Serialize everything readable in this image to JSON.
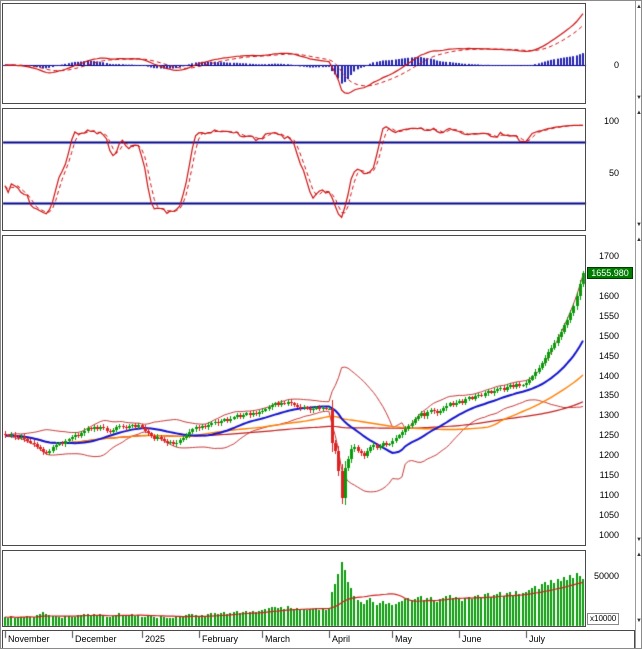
{
  "axis": {
    "volume_multiplier_label": "x10000"
  },
  "icons": {
    "scroll_up": "▲",
    "scroll_down": "▼"
  },
  "colors": {
    "candle_up": "#0a9a0a",
    "candle_down": "#dd2222",
    "histogram": "#2020b0",
    "indicator_line": "#cc1111",
    "indicator_signal": "#cc1111",
    "ref_line": "#00008b",
    "zero_line": "#00008b",
    "bollinger": "#c43a3a",
    "ma_blue": "#1313cc",
    "ma_orange": "#ff7f00",
    "ma_red": "#c02020",
    "volume_bar": "#0a9a0a",
    "volume_ma": "#cc2222",
    "badge_bg": "#007d00",
    "badge_text": "#ffffff"
  },
  "chart_data": {
    "type": "candlestick-multi-panel",
    "title": "",
    "last_price_label": "1655.980",
    "panels": [
      "macd-oscillator",
      "stochastic-oscillator",
      "price-candlestick",
      "volume"
    ],
    "x_axis": {
      "months": [
        {
          "label": "November",
          "i": 0
        },
        {
          "label": "December",
          "i": 21
        },
        {
          "label": "2025",
          "i": 43
        },
        {
          "label": "February",
          "i": 61
        },
        {
          "label": "March",
          "i": 81
        },
        {
          "label": "April",
          "i": 102
        },
        {
          "label": "May",
          "i": 122
        },
        {
          "label": "June",
          "i": 143
        },
        {
          "label": "July",
          "i": 164
        }
      ]
    },
    "y_axes": {
      "indicator1": {
        "ticks": [
          0
        ]
      },
      "indicator2": {
        "ticks": [
          100,
          50
        ],
        "range": [
          -6,
          112
        ],
        "ref_lines": [
          80,
          20
        ]
      },
      "price": {
        "ticks": [
          1700,
          1650,
          1600,
          1550,
          1500,
          1450,
          1400,
          1350,
          1300,
          1250,
          1200,
          1150,
          1100,
          1050,
          1000
        ],
        "range": [
          975,
          1750
        ]
      },
      "volume": {
        "ticks": [
          50000
        ],
        "range": [
          0,
          75000
        ]
      }
    },
    "indicators": {
      "macd": {
        "fast": 12,
        "slow": 26,
        "signal": 9
      },
      "stochastic": {
        "k": 14,
        "slowing": 3,
        "d": 3
      },
      "bollinger": {
        "period": 20,
        "mult": 2
      },
      "ma_blue": 20,
      "ma_orange": 50,
      "ma_red": 100,
      "volume_ma": 20
    },
    "closes": [
      1250,
      1248,
      1252,
      1246,
      1243,
      1247,
      1240,
      1236,
      1232,
      1228,
      1222,
      1215,
      1208,
      1205,
      1212,
      1220,
      1226,
      1230,
      1228,
      1235,
      1240,
      1246,
      1251,
      1248,
      1255,
      1262,
      1268,
      1265,
      1270,
      1266,
      1272,
      1268,
      1262,
      1258,
      1264,
      1270,
      1274,
      1271,
      1268,
      1273,
      1276,
      1272,
      1275,
      1269,
      1262,
      1255,
      1248,
      1242,
      1246,
      1240,
      1235,
      1230,
      1234,
      1228,
      1232,
      1238,
      1244,
      1250,
      1258,
      1265,
      1270,
      1268,
      1273,
      1270,
      1276,
      1280,
      1284,
      1280,
      1286,
      1290,
      1287,
      1292,
      1296,
      1300,
      1296,
      1302,
      1305,
      1301,
      1306,
      1303,
      1308,
      1312,
      1316,
      1320,
      1325,
      1330,
      1327,
      1332,
      1329,
      1334,
      1330,
      1326,
      1322,
      1318,
      1321,
      1317,
      1313,
      1317,
      1320,
      1316,
      1318,
      1317,
      1317,
      1230,
      1210,
      1160,
      1094,
      1168,
      1190,
      1215,
      1222,
      1210,
      1205,
      1198,
      1212,
      1220,
      1226,
      1218,
      1224,
      1230,
      1226,
      1228,
      1236,
      1244,
      1250,
      1258,
      1266,
      1274,
      1282,
      1290,
      1298,
      1305,
      1298,
      1308,
      1313,
      1310,
      1305,
      1312,
      1318,
      1324,
      1330,
      1327,
      1332,
      1336,
      1332,
      1340,
      1345,
      1342,
      1348,
      1352,
      1349,
      1355,
      1360,
      1356,
      1362,
      1366,
      1370,
      1365,
      1372,
      1376,
      1372,
      1378,
      1374,
      1376,
      1382,
      1390,
      1398,
      1410,
      1420,
      1432,
      1445,
      1458,
      1470,
      1482,
      1496,
      1510,
      1526,
      1540,
      1556,
      1575,
      1600,
      1630,
      1655.98
    ],
    "volumes": [
      9000,
      8500,
      10000,
      7800,
      8200,
      9500,
      8800,
      10500,
      9200,
      8600,
      11000,
      12500,
      13800,
      12000,
      10800,
      9600,
      10200,
      9000,
      8400,
      9800,
      10400,
      9200,
      8800,
      10600,
      11200,
      12400,
      11800,
      10400,
      11600,
      9800,
      12200,
      10800,
      9400,
      8800,
      10200,
      11400,
      12600,
      11000,
      9600,
      10800,
      11600,
      10200,
      10800,
      9400,
      8600,
      9800,
      10400,
      9000,
      8200,
      9600,
      8800,
      7600,
      8400,
      7800,
      8600,
      9200,
      10000,
      10800,
      11600,
      12400,
      11000,
      10200,
      11000,
      10400,
      11800,
      12600,
      13400,
      11800,
      12800,
      13600,
      12000,
      13000,
      14200,
      15000,
      13200,
      14400,
      15200,
      13600,
      14800,
      13800,
      15400,
      16200,
      17000,
      17800,
      18600,
      19400,
      17600,
      18800,
      17200,
      19600,
      18000,
      16800,
      17600,
      16400,
      17200,
      15800,
      16600,
      17400,
      18200,
      16000,
      17000,
      16400,
      18000,
      34000,
      42000,
      52000,
      64000,
      56000,
      44000,
      38000,
      30000,
      26000,
      24000,
      22000,
      26000,
      28000,
      24000,
      21000,
      23000,
      25000,
      22000,
      23000,
      21000,
      22500,
      24000,
      25500,
      27000,
      28500,
      26000,
      27500,
      29000,
      30500,
      26500,
      28000,
      29500,
      26000,
      24500,
      27000,
      28500,
      30000,
      31500,
      28000,
      29500,
      27000,
      25500,
      28000,
      29500,
      27500,
      30000,
      31500,
      28500,
      32000,
      33500,
      29500,
      31000,
      32500,
      34000,
      30000,
      33000,
      34500,
      31500,
      35000,
      32000,
      33500,
      34000,
      36000,
      38000,
      40500,
      37500,
      42000,
      44500,
      41000,
      46000,
      43000,
      47500,
      45000,
      49500,
      46500,
      51000,
      48000,
      53000,
      50000,
      47000
    ]
  }
}
